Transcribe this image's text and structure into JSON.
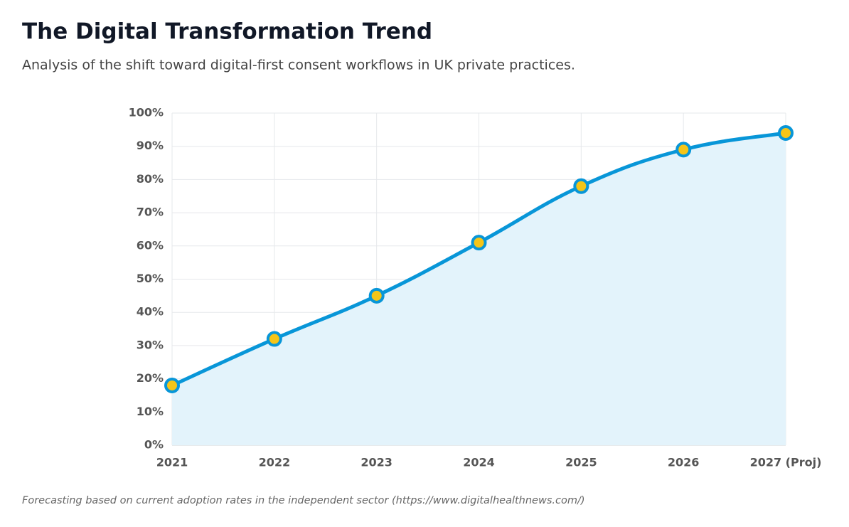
{
  "chart_data": {
    "type": "line",
    "title": "The Digital Transformation Trend",
    "subtitle": "Analysis of the shift toward digital-first consent workflows in UK private practices.",
    "note": "Forecasting based on current adoption rates in the independent sector (https://www.digitalhealthnews.com/)",
    "categories": [
      "2021",
      "2022",
      "2023",
      "2024",
      "2025",
      "2026",
      "2027 (Proj)"
    ],
    "values": [
      18,
      32,
      45,
      61,
      78,
      89,
      94
    ],
    "color": "#0896d8",
    "area_color": "#e3f3fb",
    "marker_color": "#f5c518",
    "ylim": [
      0,
      100
    ],
    "yticks": [
      {
        "value": 0,
        "label": "0%"
      },
      {
        "value": 10,
        "label": "10%"
      },
      {
        "value": 20,
        "label": "20%"
      },
      {
        "value": 30,
        "label": "30%"
      },
      {
        "value": 40,
        "label": "40%"
      },
      {
        "value": 50,
        "label": "50%"
      },
      {
        "value": 60,
        "label": "60%"
      },
      {
        "value": 70,
        "label": "70%"
      },
      {
        "value": 80,
        "label": "80%"
      },
      {
        "value": 90,
        "label": "90%"
      },
      {
        "value": 100,
        "label": "100%"
      }
    ],
    "grid": true
  }
}
